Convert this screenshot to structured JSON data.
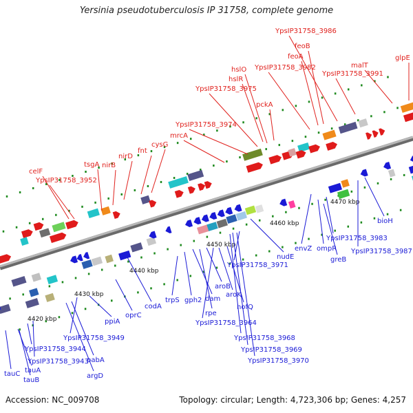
{
  "map": {
    "title": "Yersinia pseudotuberculosis IP 31758, complete genome",
    "footer_left": "Accession: NC_009708",
    "footer_right": "Topology: circular; Length: 4,723,306 bp; Genes: 4,257"
  },
  "colors": {
    "forward_label": "#e0211d",
    "reverse_label": "#1a1ad6",
    "backbone": "#8a8a8a",
    "tick": "#1e8a1e"
  },
  "axis_ticks": [
    "4420 kbp",
    "4430 kbp",
    "4440 kbp",
    "4450 kbp",
    "4460 kbp",
    "4470 kbp"
  ],
  "genes_forward": [
    "celF",
    "YpsIP31758_3952",
    "tsgA",
    "nirB",
    "nirD",
    "fnt",
    "cysG",
    "mrcA",
    "YpsIP31758_3974",
    "YpsIP31758_3975",
    "hslR",
    "hslO",
    "pckA",
    "YpsIP31758_3982",
    "feoA",
    "feoB",
    "YpsIP31758_3986",
    "YpsIP31758_3991",
    "malT",
    "glpE"
  ],
  "genes_reverse": [
    "tauC",
    "tauA",
    "tauB",
    "YpsIP31758_3944",
    "YpsIP31758_3943",
    "argD",
    "pabA",
    "YpsIP31758_3949",
    "ppiA",
    "oprC",
    "codA",
    "trpS",
    "gph2",
    "dam",
    "rpe",
    "aroB",
    "aroK",
    "hofQ",
    "YpsIP31758_3964",
    "YpsIP31758_3968",
    "YpsIP31758_3969",
    "YpsIP31758_3970",
    "YpsIP31758_3971",
    "nudE",
    "envZ",
    "ompR",
    "greB",
    "YpsIP31758_3983",
    "YpsIP31758_3987",
    "bioH"
  ]
}
